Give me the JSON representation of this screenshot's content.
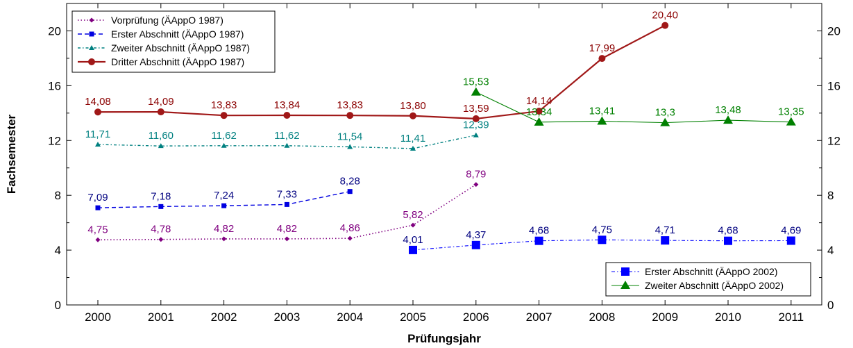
{
  "chart_data": {
    "type": "line",
    "xlabel": "Prüfungsjahr",
    "ylabel": "Fachsemester",
    "x": [
      "2000",
      "2001",
      "2002",
      "2003",
      "2004",
      "2005",
      "2006",
      "2007",
      "2008",
      "2009",
      "2010",
      "2011"
    ],
    "ylim": [
      0,
      22
    ],
    "yticks": [
      "0",
      "4",
      "8",
      "12",
      "16",
      "20"
    ],
    "series": [
      {
        "name": "Vorprüfung (ÄAppO 1987)",
        "color": "#800080",
        "line_style": "dotted",
        "marker": "diamond",
        "values": [
          4.75,
          4.78,
          4.82,
          4.82,
          4.86,
          5.82,
          8.79,
          null,
          null,
          null,
          null,
          null
        ],
        "labels": [
          "4,75",
          "4,78",
          "4,82",
          "4,82",
          "4,86",
          "5,82",
          "8,79",
          null,
          null,
          null,
          null,
          null
        ]
      },
      {
        "name": "Erster Abschnitt (ÄAppO 1987)",
        "color": "#0000e0",
        "label_color": "#000080",
        "line_style": "dashed",
        "marker": "square-small",
        "values": [
          7.09,
          7.18,
          7.24,
          7.33,
          8.28,
          null,
          null,
          null,
          null,
          null,
          null,
          null
        ],
        "labels": [
          "7,09",
          "7,18",
          "7,24",
          "7,33",
          "8,28",
          null,
          null,
          null,
          null,
          null,
          null,
          null
        ]
      },
      {
        "name": "Zweiter Abschnitt (ÄAppO 1987)",
        "color": "#008080",
        "line_style": "dashdot",
        "marker": "triangle-small",
        "values": [
          11.71,
          11.6,
          11.62,
          11.62,
          11.54,
          11.41,
          12.39,
          null,
          null,
          null,
          null,
          null
        ],
        "labels": [
          "11,71",
          "11,60",
          "11,62",
          "11,62",
          "11,54",
          "11,41",
          "12,39",
          null,
          null,
          null,
          null,
          null
        ]
      },
      {
        "name": "Dritter Abschnitt (ÄAppO 1987)",
        "color": "#a01818",
        "label_color": "#8b0000",
        "line_style": "solid",
        "marker": "circle",
        "values": [
          14.08,
          14.09,
          13.83,
          13.84,
          13.83,
          13.8,
          13.59,
          14.14,
          17.99,
          20.4,
          null,
          null
        ],
        "labels": [
          "14,08",
          "14,09",
          "13,83",
          "13,84",
          "13,83",
          "13,80",
          "13,59",
          "14,14",
          "17,99",
          "20,40",
          null,
          null
        ]
      },
      {
        "name": "Erster Abschnitt (ÄAppO 2002)",
        "color": "#0000ff",
        "label_color": "#000080",
        "line_style": "dashdot-thin",
        "marker": "square",
        "values": [
          null,
          null,
          null,
          null,
          null,
          4.01,
          4.37,
          4.68,
          4.75,
          4.71,
          4.68,
          4.69
        ],
        "labels": [
          null,
          null,
          null,
          null,
          null,
          "4,01",
          "4,37",
          "4,68",
          "4,75",
          "4,71",
          "4,68",
          "4,69"
        ]
      },
      {
        "name": "Zweiter Abschnitt (ÄAppO 2002)",
        "color": "#008000",
        "line_style": "solid-thin",
        "marker": "triangle",
        "values": [
          null,
          null,
          null,
          null,
          null,
          null,
          15.53,
          13.34,
          13.41,
          13.3,
          13.48,
          13.35
        ],
        "labels": [
          null,
          null,
          null,
          null,
          null,
          null,
          "15,53",
          "13,34",
          "13,41",
          "13,3",
          "13,48",
          "13,35"
        ]
      }
    ],
    "legends": [
      {
        "placement": "top-left",
        "series": [
          0,
          1,
          2,
          3
        ]
      },
      {
        "placement": "bottom-right",
        "series": [
          4,
          5
        ]
      }
    ],
    "grid": false,
    "y_axis_right": true
  }
}
